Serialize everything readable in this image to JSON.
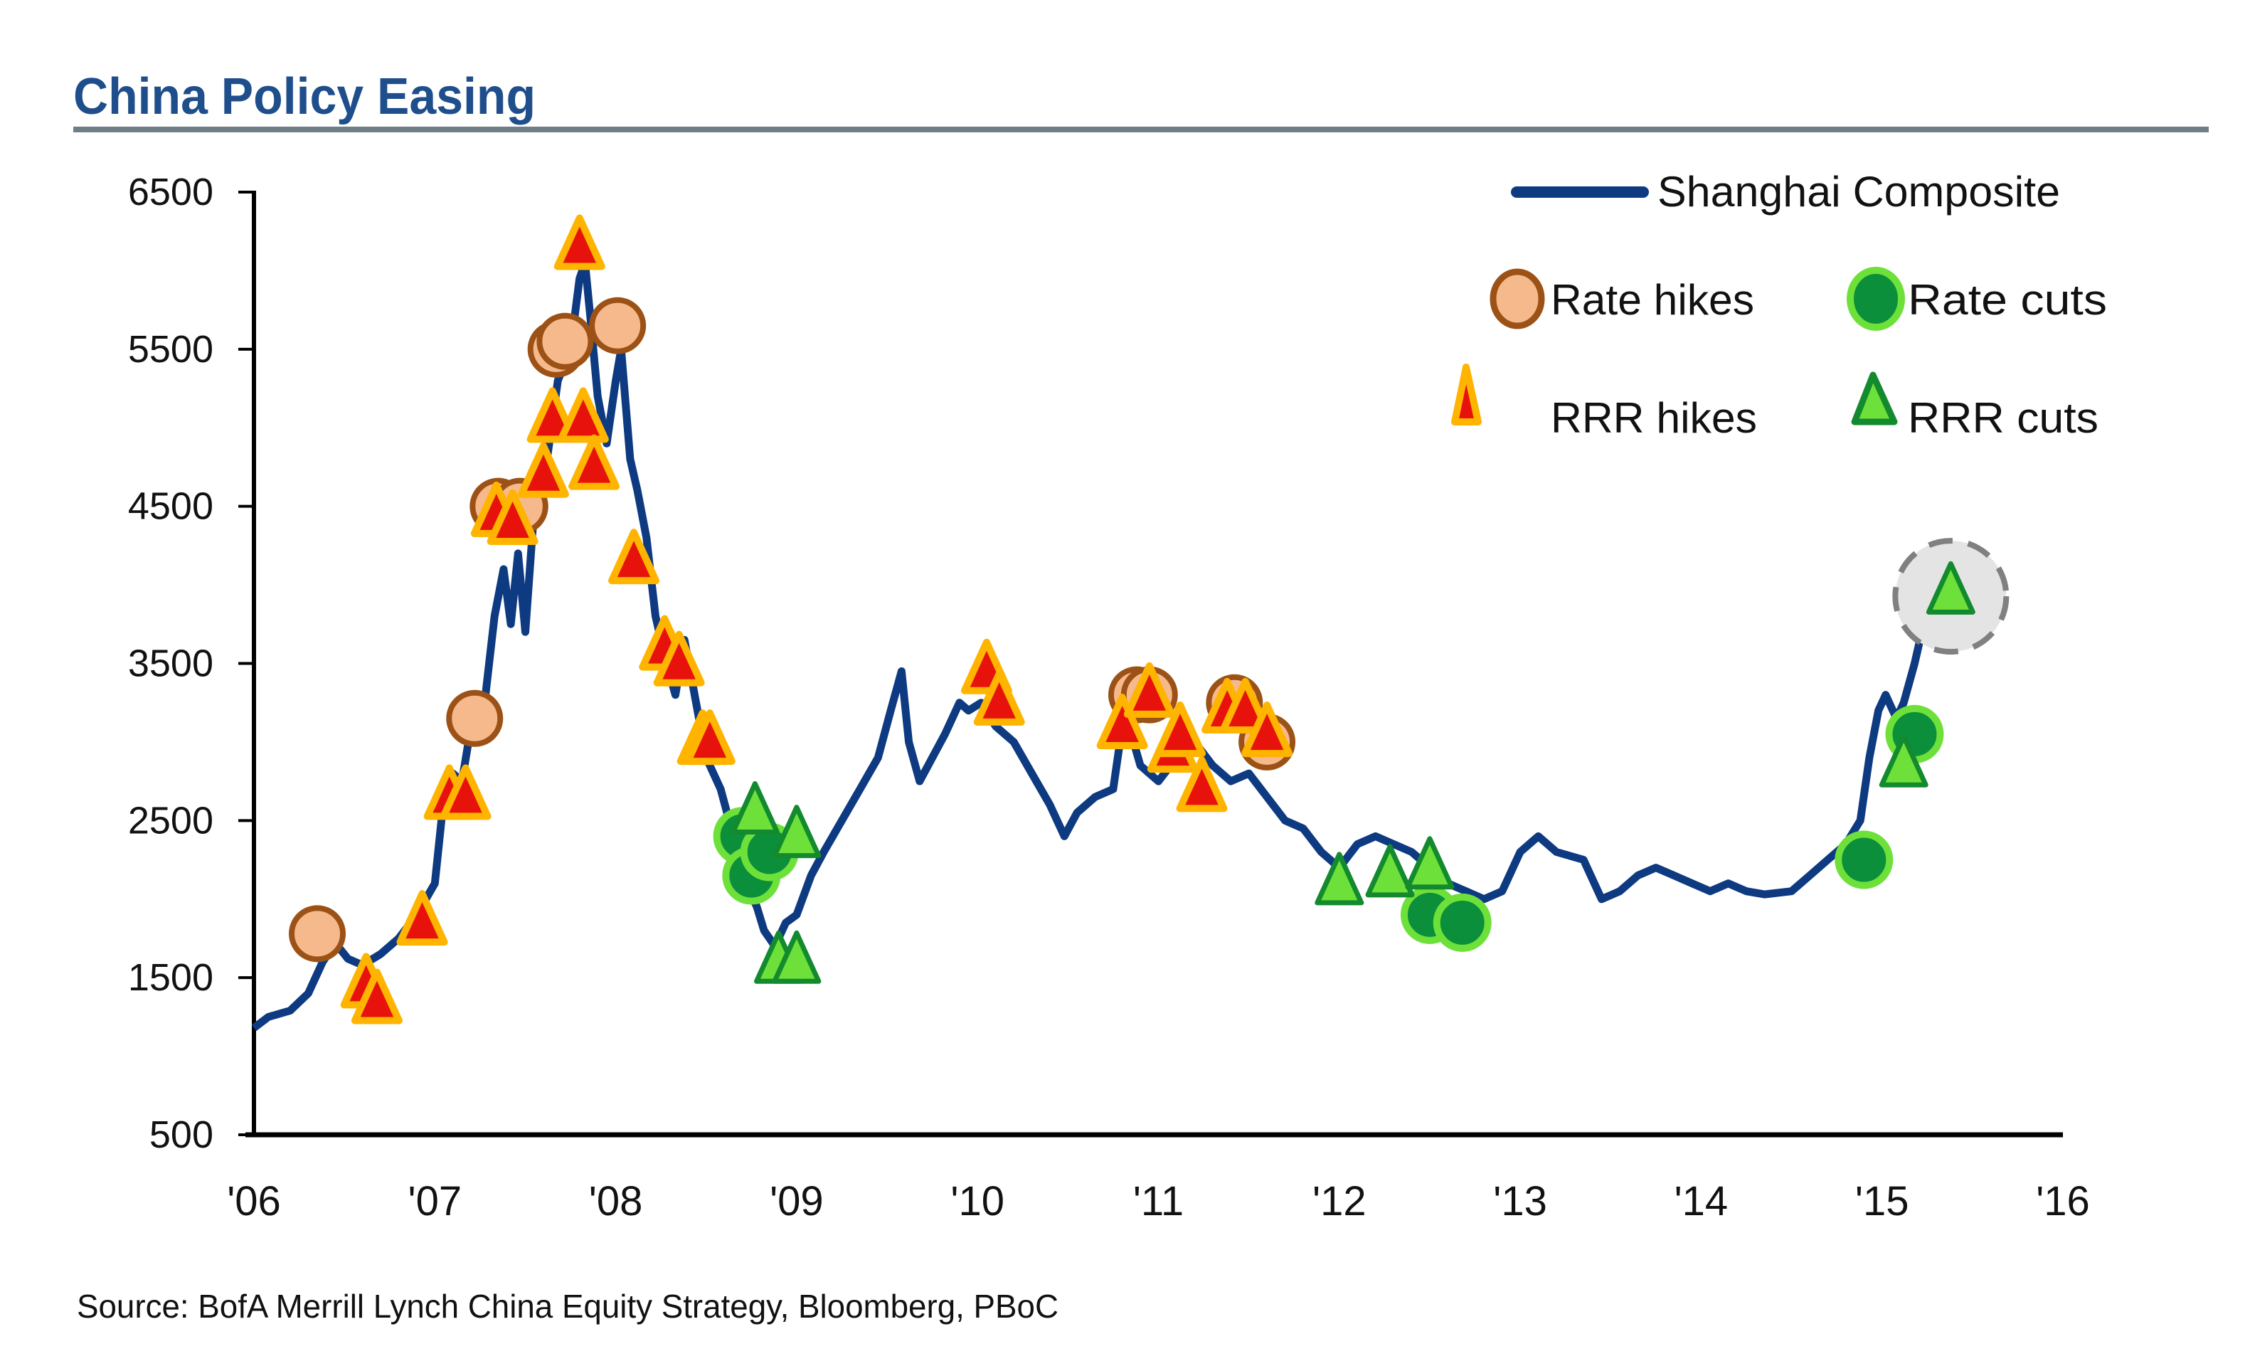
{
  "chart_data": {
    "type": "line",
    "title": "China Policy Easing",
    "xlabel": "",
    "ylabel": "",
    "source": "Source: BofA Merrill Lynch China Equity Strategy, Bloomberg, PBoC",
    "xlim": [
      2006,
      2016
    ],
    "ylim": [
      500,
      6500
    ],
    "x_ticks": [
      {
        "value": 2006,
        "label": "'06"
      },
      {
        "value": 2007,
        "label": "'07"
      },
      {
        "value": 2008,
        "label": "'08"
      },
      {
        "value": 2009,
        "label": "'09"
      },
      {
        "value": 2010,
        "label": "'10"
      },
      {
        "value": 2011,
        "label": "'11"
      },
      {
        "value": 2012,
        "label": "'12"
      },
      {
        "value": 2013,
        "label": "'13"
      },
      {
        "value": 2014,
        "label": "'14"
      },
      {
        "value": 2015,
        "label": "'15"
      },
      {
        "value": 2016,
        "label": "'16"
      }
    ],
    "y_ticks": [
      {
        "value": 6500,
        "label": "6500"
      },
      {
        "value": 5500,
        "label": "5500"
      },
      {
        "value": 4500,
        "label": "4500"
      },
      {
        "value": 3500,
        "label": "3500"
      },
      {
        "value": 2500,
        "label": "2500"
      },
      {
        "value": 1500,
        "label": "1500"
      },
      {
        "value": 500,
        "label": "500"
      }
    ],
    "grid": false,
    "legend_position": "top-right",
    "legend": [
      {
        "key": "line",
        "label": "Shanghai Composite"
      },
      {
        "key": "rate_hikes",
        "label": "Rate hikes"
      },
      {
        "key": "rate_cuts",
        "label": "Rate cuts"
      },
      {
        "key": "rrr_hikes",
        "label": "RRR hikes"
      },
      {
        "key": "rrr_cuts",
        "label": "RRR cuts"
      }
    ],
    "colors": {
      "line": "#0d3a80",
      "rate_hike_fill": "#f6b98c",
      "rate_hike_stroke": "#9c5216",
      "rate_cut_fill": "#0b8f3a",
      "rate_cut_stroke": "#6ee03a",
      "rrr_hike_fill": "#e8120c",
      "rrr_hike_stroke": "#ffb400",
      "rrr_cut_fill": "#6ee03a",
      "rrr_cut_stroke": "#138a2e",
      "highlight_fill": "#e4e4e4",
      "highlight_stroke": "#808080",
      "title_rule": "#6f7f88",
      "title": "#1f4e8c"
    },
    "series": [
      {
        "name": "Shanghai Composite",
        "points": [
          [
            2006.0,
            1180
          ],
          [
            2006.08,
            1250
          ],
          [
            2006.2,
            1290
          ],
          [
            2006.3,
            1400
          ],
          [
            2006.38,
            1600
          ],
          [
            2006.45,
            1720
          ],
          [
            2006.52,
            1620
          ],
          [
            2006.6,
            1580
          ],
          [
            2006.7,
            1650
          ],
          [
            2006.8,
            1750
          ],
          [
            2006.9,
            1900
          ],
          [
            2007.0,
            2100
          ],
          [
            2007.05,
            2650
          ],
          [
            2007.1,
            2800
          ],
          [
            2007.15,
            2750
          ],
          [
            2007.2,
            3100
          ],
          [
            2007.28,
            3300
          ],
          [
            2007.33,
            3800
          ],
          [
            2007.38,
            4100
          ],
          [
            2007.42,
            3750
          ],
          [
            2007.46,
            4200
          ],
          [
            2007.5,
            3700
          ],
          [
            2007.55,
            4500
          ],
          [
            2007.62,
            4800
          ],
          [
            2007.68,
            5300
          ],
          [
            2007.75,
            5500
          ],
          [
            2007.8,
            5950
          ],
          [
            2007.83,
            6050
          ],
          [
            2007.86,
            5700
          ],
          [
            2007.9,
            5200
          ],
          [
            2007.95,
            4900
          ],
          [
            2008.0,
            5300
          ],
          [
            2008.03,
            5500
          ],
          [
            2008.08,
            4800
          ],
          [
            2008.12,
            4600
          ],
          [
            2008.17,
            4300
          ],
          [
            2008.22,
            3800
          ],
          [
            2008.28,
            3500
          ],
          [
            2008.33,
            3300
          ],
          [
            2008.38,
            3650
          ],
          [
            2008.42,
            3400
          ],
          [
            2008.5,
            2900
          ],
          [
            2008.58,
            2700
          ],
          [
            2008.65,
            2400
          ],
          [
            2008.72,
            2100
          ],
          [
            2008.78,
            1950
          ],
          [
            2008.82,
            1800
          ],
          [
            2008.88,
            1700
          ],
          [
            2008.94,
            1850
          ],
          [
            2009.0,
            1900
          ],
          [
            2009.08,
            2150
          ],
          [
            2009.15,
            2300
          ],
          [
            2009.25,
            2500
          ],
          [
            2009.35,
            2700
          ],
          [
            2009.45,
            2900
          ],
          [
            2009.52,
            3200
          ],
          [
            2009.58,
            3450
          ],
          [
            2009.62,
            3000
          ],
          [
            2009.68,
            2750
          ],
          [
            2009.75,
            2900
          ],
          [
            2009.82,
            3050
          ],
          [
            2009.9,
            3250
          ],
          [
            2009.95,
            3200
          ],
          [
            2010.02,
            3250
          ],
          [
            2010.1,
            3100
          ],
          [
            2010.2,
            3000
          ],
          [
            2010.3,
            2800
          ],
          [
            2010.4,
            2600
          ],
          [
            2010.48,
            2400
          ],
          [
            2010.55,
            2550
          ],
          [
            2010.65,
            2650
          ],
          [
            2010.75,
            2700
          ],
          [
            2010.8,
            3100
          ],
          [
            2010.85,
            3050
          ],
          [
            2010.9,
            2850
          ],
          [
            2010.95,
            2800
          ],
          [
            2011.0,
            2750
          ],
          [
            2011.1,
            2900
          ],
          [
            2011.2,
            3000
          ],
          [
            2011.3,
            2850
          ],
          [
            2011.4,
            2750
          ],
          [
            2011.5,
            2800
          ],
          [
            2011.6,
            2650
          ],
          [
            2011.7,
            2500
          ],
          [
            2011.8,
            2450
          ],
          [
            2011.9,
            2300
          ],
          [
            2012.0,
            2200
          ],
          [
            2012.1,
            2350
          ],
          [
            2012.2,
            2400
          ],
          [
            2012.3,
            2350
          ],
          [
            2012.4,
            2300
          ],
          [
            2012.5,
            2200
          ],
          [
            2012.6,
            2100
          ],
          [
            2012.7,
            2050
          ],
          [
            2012.8,
            2000
          ],
          [
            2012.9,
            2050
          ],
          [
            2013.0,
            2300
          ],
          [
            2013.1,
            2400
          ],
          [
            2013.2,
            2300
          ],
          [
            2013.35,
            2250
          ],
          [
            2013.45,
            2000
          ],
          [
            2013.55,
            2050
          ],
          [
            2013.65,
            2150
          ],
          [
            2013.75,
            2200
          ],
          [
            2013.85,
            2150
          ],
          [
            2013.95,
            2100
          ],
          [
            2014.05,
            2050
          ],
          [
            2014.15,
            2100
          ],
          [
            2014.25,
            2050
          ],
          [
            2014.35,
            2030
          ],
          [
            2014.5,
            2050
          ],
          [
            2014.6,
            2150
          ],
          [
            2014.7,
            2250
          ],
          [
            2014.8,
            2350
          ],
          [
            2014.88,
            2500
          ],
          [
            2014.93,
            2900
          ],
          [
            2014.98,
            3200
          ],
          [
            2015.02,
            3300
          ],
          [
            2015.08,
            3150
          ],
          [
            2015.12,
            3250
          ],
          [
            2015.18,
            3500
          ],
          [
            2015.22,
            3700
          ],
          [
            2015.26,
            3950
          ]
        ]
      }
    ],
    "events": {
      "rate_hikes": [
        [
          2006.35,
          1780
        ],
        [
          2007.22,
          3150
        ],
        [
          2007.35,
          4500
        ],
        [
          2007.47,
          4500
        ],
        [
          2007.67,
          5500
        ],
        [
          2007.72,
          5550
        ],
        [
          2008.01,
          5650
        ],
        [
          2010.88,
          3300
        ],
        [
          2010.95,
          3300
        ],
        [
          2011.42,
          3250
        ],
        [
          2011.6,
          3000
        ]
      ],
      "rate_cuts": [
        [
          2008.7,
          2400
        ],
        [
          2008.75,
          2150
        ],
        [
          2008.85,
          2300
        ],
        [
          2012.5,
          1900
        ],
        [
          2012.68,
          1850
        ],
        [
          2014.9,
          2250
        ],
        [
          2015.18,
          3050
        ]
      ],
      "rrr_hikes": [
        [
          2006.62,
          1450
        ],
        [
          2006.68,
          1350
        ],
        [
          2006.93,
          1850
        ],
        [
          2007.08,
          2650
        ],
        [
          2007.17,
          2650
        ],
        [
          2007.34,
          4450
        ],
        [
          2007.43,
          4400
        ],
        [
          2007.6,
          4700
        ],
        [
          2007.65,
          5050
        ],
        [
          2007.82,
          5050
        ],
        [
          2007.88,
          4750
        ],
        [
          2007.8,
          6150
        ],
        [
          2008.1,
          4150
        ],
        [
          2008.27,
          3600
        ],
        [
          2008.35,
          3500
        ],
        [
          2008.48,
          3000
        ],
        [
          2008.52,
          3000
        ],
        [
          2010.05,
          3450
        ],
        [
          2010.12,
          3250
        ],
        [
          2010.8,
          3100
        ],
        [
          2010.95,
          3300
        ],
        [
          2011.08,
          2950
        ],
        [
          2011.12,
          3050
        ],
        [
          2011.24,
          2700
        ],
        [
          2011.38,
          3200
        ],
        [
          2011.48,
          3200
        ],
        [
          2011.6,
          3050
        ]
      ],
      "rrr_cuts": [
        [
          2008.77,
          2550
        ],
        [
          2009.0,
          2400
        ],
        [
          2008.9,
          1600
        ],
        [
          2009.0,
          1600
        ],
        [
          2012.0,
          2100
        ],
        [
          2012.28,
          2150
        ],
        [
          2012.5,
          2200
        ],
        [
          2015.12,
          2850
        ],
        [
          2015.38,
          3950
        ]
      ],
      "highlighted": [
        [
          2015.38,
          3950
        ]
      ]
    }
  }
}
